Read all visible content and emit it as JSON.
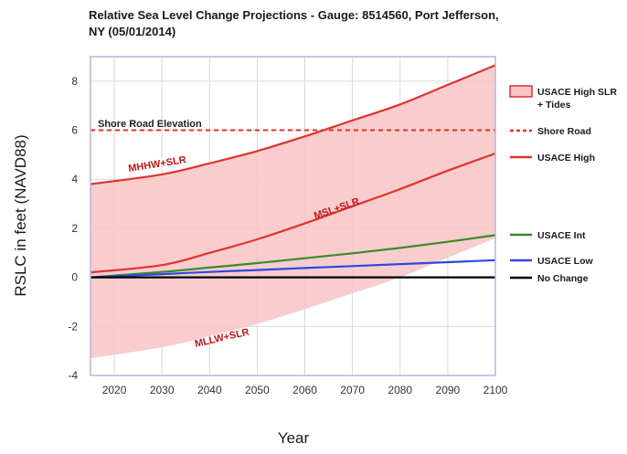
{
  "chart_data": {
    "type": "line",
    "title_line1": "Relative Sea Level Change Projections - Gauge: 8514560, Port Jefferson,",
    "title_line2": "NY (05/01/2014)",
    "xlabel": "Year",
    "ylabel": "RSLC in feet (NAVD88)",
    "xlim": [
      2015,
      2100
    ],
    "ylim": [
      -4,
      9
    ],
    "x_ticks": [
      2020,
      2030,
      2040,
      2050,
      2060,
      2070,
      2080,
      2090,
      2100
    ],
    "y_ticks": [
      -4,
      -2,
      0,
      2,
      4,
      6,
      8
    ],
    "x": [
      2015,
      2030,
      2040,
      2050,
      2060,
      2070,
      2080,
      2090,
      2100
    ],
    "band": {
      "name": "USACE High SLR + Tides",
      "upper_MHHW": [
        3.8,
        4.2,
        4.65,
        5.15,
        5.75,
        6.4,
        7.05,
        7.85,
        8.65
      ],
      "lower_MLLW": [
        -3.3,
        -2.85,
        -2.4,
        -1.9,
        -1.3,
        -0.65,
        0.0,
        0.8,
        1.6
      ],
      "color": "#f8c4c4"
    },
    "series": [
      {
        "name": "USACE High",
        "key": "high",
        "values": [
          0.2,
          0.5,
          1.0,
          1.55,
          2.2,
          2.9,
          3.6,
          4.35,
          5.05
        ],
        "color": "#e0322c"
      },
      {
        "name": "USACE Int",
        "key": "int",
        "values": [
          0.0,
          0.22,
          0.4,
          0.58,
          0.78,
          0.98,
          1.2,
          1.45,
          1.72
        ],
        "color": "#3a8a2a"
      },
      {
        "name": "USACE Low",
        "key": "low",
        "values": [
          0.0,
          0.13,
          0.22,
          0.3,
          0.38,
          0.46,
          0.54,
          0.62,
          0.7
        ],
        "color": "#2c48e0"
      },
      {
        "name": "No Change",
        "key": "none",
        "values": [
          0,
          0,
          0,
          0,
          0,
          0,
          0,
          0,
          0
        ],
        "color": "#000000"
      }
    ],
    "shore_road": {
      "name": "Shore Road",
      "value": 6.0,
      "label": "Shore Road Elevation",
      "color": "#e0322c"
    },
    "annotations": {
      "mhhw": "MHHW+SLR",
      "msl": "MSL+SLR",
      "mllw": "MLLW+SLR"
    },
    "legend": [
      {
        "key": "band",
        "line1": "USACE High SLR",
        "line2": "+ Tides",
        "color": "#f8c4c4"
      },
      {
        "key": "shore",
        "line1": "Shore Road",
        "line2": "",
        "color": "#e0322c"
      },
      {
        "key": "high",
        "line1": "USACE High",
        "line2": "",
        "color": "#e0322c"
      },
      {
        "key": "int",
        "line1": "USACE Int",
        "line2": "",
        "color": "#3a8a2a"
      },
      {
        "key": "low",
        "line1": "USACE Low",
        "line2": "",
        "color": "#2c48e0"
      },
      {
        "key": "none",
        "line1": "No Change",
        "line2": "",
        "color": "#000000"
      }
    ],
    "grid": true
  }
}
